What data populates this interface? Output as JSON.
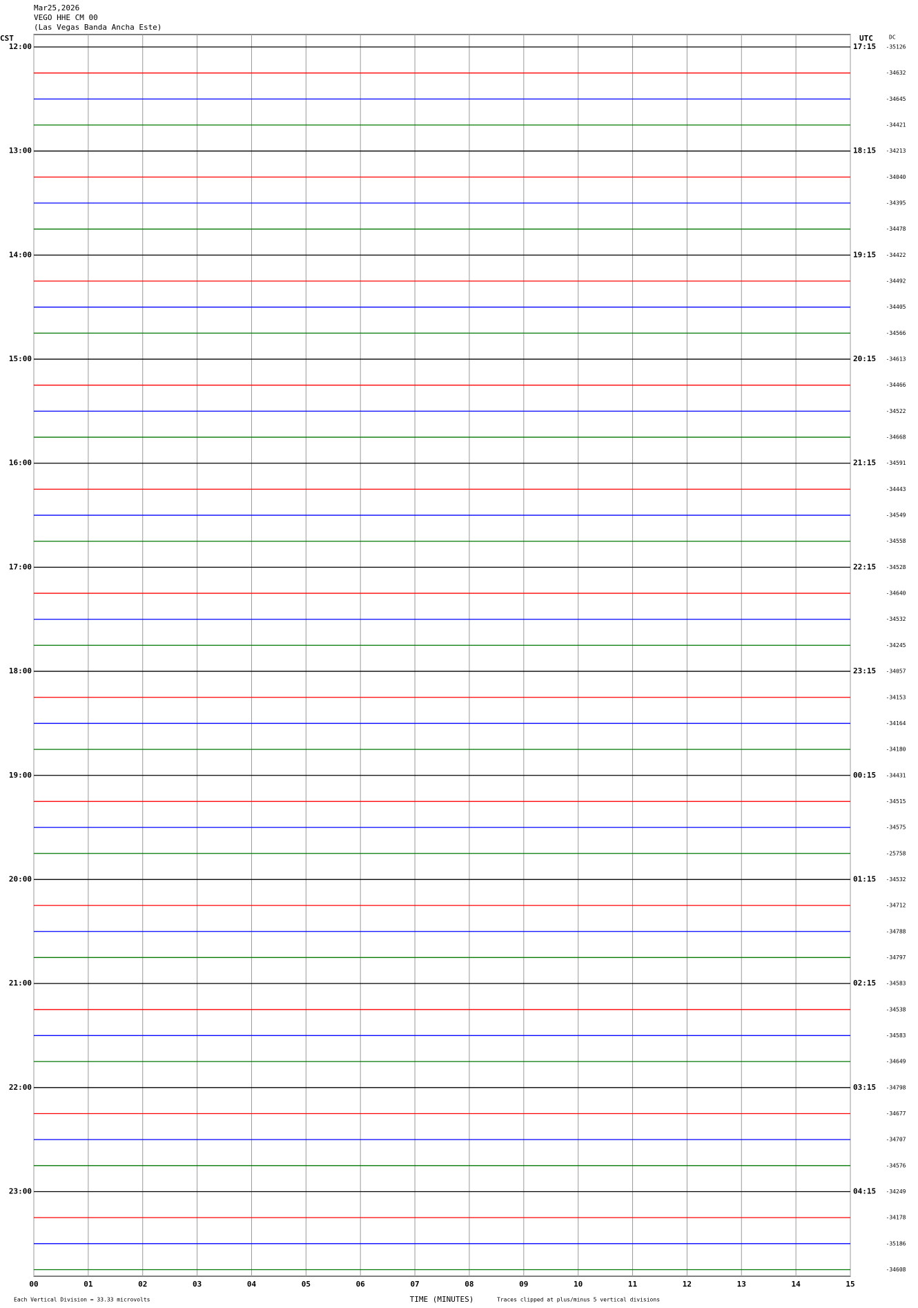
{
  "header": {
    "date": "Mar25,2026",
    "station": "VEGO HHE CM 00",
    "location": "(Las Vegas Banda Ancha Este)"
  },
  "left_axis_title": "CST",
  "right_axis_title": "UTC",
  "dc_title": "DC",
  "cst_labels": [
    "12:00",
    "13:00",
    "14:00",
    "15:00",
    "16:00",
    "17:00",
    "18:00",
    "19:00",
    "20:00",
    "21:00",
    "22:00",
    "23:00"
  ],
  "utc_labels": [
    "17:15",
    "18:15",
    "19:15",
    "20:15",
    "21:15",
    "22:15",
    "23:15",
    "00:15",
    "01:15",
    "02:15",
    "03:15",
    "04:15"
  ],
  "trace_colors": [
    "#000000",
    "#ff0000",
    "#0000ff",
    "#007700"
  ],
  "dc_values": [
    -35126,
    -34632,
    -34645,
    -34421,
    -34213,
    -34040,
    -34395,
    -34478,
    -34422,
    -34492,
    -34405,
    -34566,
    -34613,
    -34466,
    -34522,
    -34668,
    -34591,
    -34443,
    -34549,
    -34558,
    -34528,
    -34640,
    -34532,
    -34245,
    -34057,
    -34153,
    -34164,
    -34180,
    -34431,
    -34515,
    -34575,
    -25758,
    -34532,
    -34712,
    -34788,
    -34797,
    -34583,
    -34538,
    -34583,
    -34649,
    -34798,
    -34677,
    -34707,
    -34576,
    -34249,
    -34178,
    -35186,
    -34608
  ],
  "x_labels": [
    "00",
    "01",
    "02",
    "03",
    "04",
    "05",
    "06",
    "07",
    "08",
    "09",
    "10",
    "11",
    "12",
    "13",
    "14",
    "15"
  ],
  "x_axis_title": "TIME (MINUTES)",
  "footer": {
    "scale": "Each Vertical Division =   33.33 microvolts",
    "clip": "Traces clipped at plus/minus 5 vertical divisions"
  }
}
